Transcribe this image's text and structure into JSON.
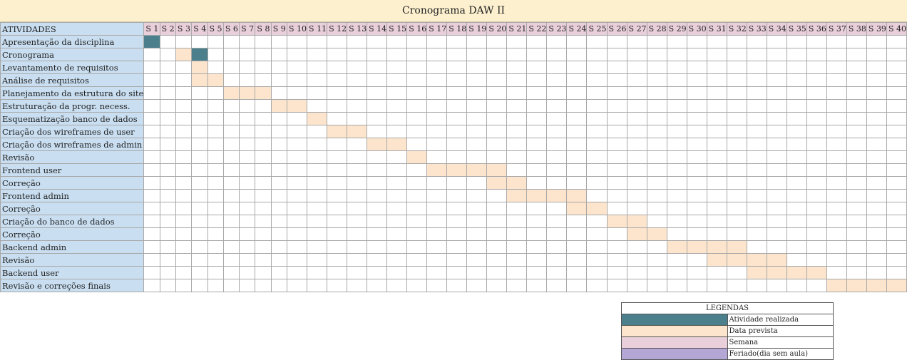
{
  "title": "Cronograma DAW II",
  "header_label": "ATIVIDADES",
  "weeks": [
    "S 1",
    "S 2",
    "S 3",
    "S 4",
    "S 5",
    "S 6",
    "S 7",
    "S 8",
    "S 9",
    "S 10",
    "S 11",
    "S 12",
    "S 13",
    "S 14",
    "S 15",
    "S 16",
    "S 17",
    "S 18",
    "S 19",
    "S 20",
    "S 21",
    "S 22",
    "S 23",
    "S 24",
    "S 25",
    "S 26",
    "S 27",
    "S 28",
    "S 29",
    "S 30",
    "S 31",
    "S 32",
    "S 33",
    "S 34",
    "S 35",
    "S 36",
    "S 37",
    "S 38",
    "S 39",
    "S 40"
  ],
  "activities": [
    {
      "name": "Apresentação da disciplina",
      "done": [
        1
      ],
      "planned": []
    },
    {
      "name": "Cronograma",
      "done": [
        4
      ],
      "planned": [
        3
      ]
    },
    {
      "name": "Levantamento de requisitos",
      "done": [],
      "planned": [
        4
      ]
    },
    {
      "name": "Análise de requisitos",
      "done": [],
      "planned": [
        4,
        5
      ]
    },
    {
      "name": "Planejamento da estrutura do site",
      "done": [],
      "planned": [
        6,
        7,
        8
      ]
    },
    {
      "name": "Estruturação da progr. necess.",
      "done": [],
      "planned": [
        9,
        10
      ]
    },
    {
      "name": "Esquematização banco de dados",
      "done": [],
      "planned": [
        11
      ]
    },
    {
      "name": "Criação dos wireframes de user",
      "done": [],
      "planned": [
        12,
        13
      ]
    },
    {
      "name": "Criação dos wireframes de admin",
      "done": [],
      "planned": [
        14,
        15
      ]
    },
    {
      "name": "Revisão",
      "done": [],
      "planned": [
        16
      ]
    },
    {
      "name": "Frontend user",
      "done": [],
      "planned": [
        17,
        18,
        19,
        20
      ]
    },
    {
      "name": "Correção",
      "done": [],
      "planned": [
        20,
        21
      ]
    },
    {
      "name": "Frontend admin",
      "done": [],
      "planned": [
        21,
        22,
        23,
        24
      ]
    },
    {
      "name": "Correção",
      "done": [],
      "planned": [
        24,
        25
      ]
    },
    {
      "name": "Criação do banco de dados",
      "done": [],
      "planned": [
        26,
        27
      ]
    },
    {
      "name": "Correção",
      "done": [],
      "planned": [
        27,
        28
      ]
    },
    {
      "name": "Backend admin",
      "done": [],
      "planned": [
        29,
        30,
        31,
        32
      ]
    },
    {
      "name": "Revisão",
      "done": [],
      "planned": [
        31,
        32,
        33,
        34
      ]
    },
    {
      "name": "Backend user",
      "done": [],
      "planned": [
        33,
        34,
        35,
        36
      ]
    },
    {
      "name": "Revisão e correções finais",
      "done": [],
      "planned": [
        37,
        38,
        39,
        40
      ]
    }
  ],
  "legend": {
    "title": "LEGENDAS",
    "items": [
      {
        "label": "Atividade realizada",
        "color": "#4b7f8c"
      },
      {
        "label": "Data prevista",
        "color": "#fce5cc"
      },
      {
        "label": "Semana",
        "color": "#e9cfd9"
      },
      {
        "label": "Feriado(dia sem aula)",
        "color": "#b4a7d6"
      }
    ]
  }
}
